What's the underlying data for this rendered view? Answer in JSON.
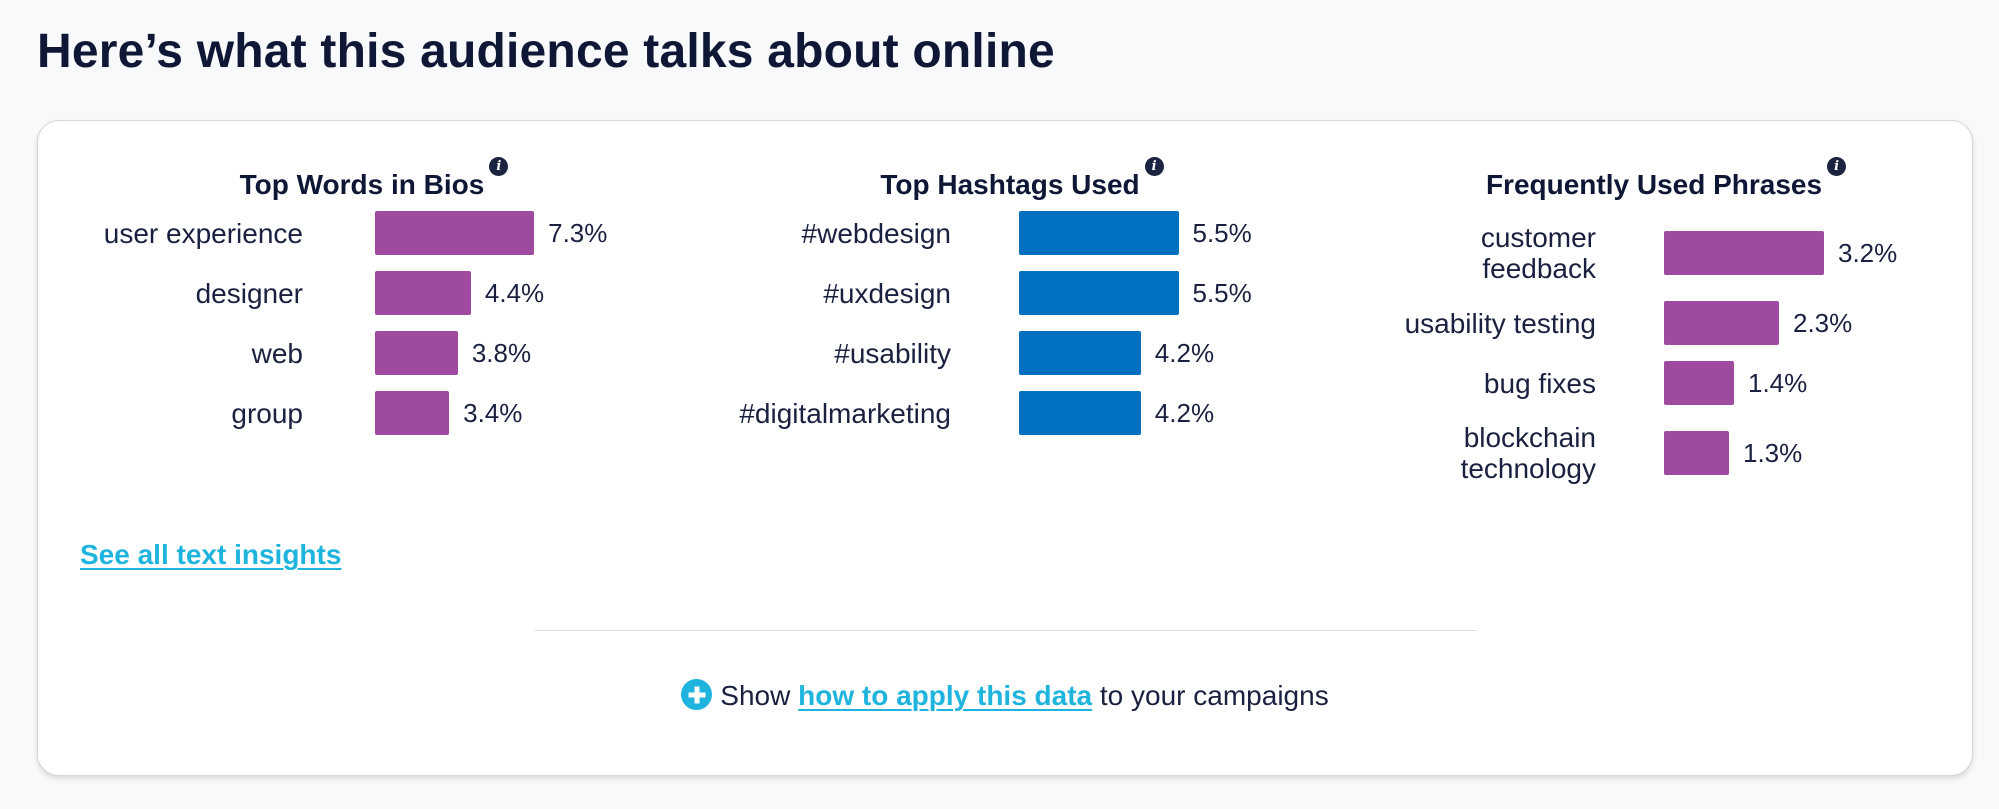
{
  "page": {
    "title": "Here’s what this audience talks about online"
  },
  "colors": {
    "purple_bar": "#9e4a9e",
    "blue_bar": "#0070c0",
    "link": "#1fb4de",
    "title": "#0e1736"
  },
  "panels": [
    {
      "key": "bios",
      "title": "Top Words in Bios",
      "info_icon": "info-icon",
      "bar_color": "#9e4a9e",
      "items": [
        {
          "label": "user experience",
          "value": 7.3,
          "display": "7.3%"
        },
        {
          "label": "designer",
          "value": 4.4,
          "display": "4.4%"
        },
        {
          "label": "web",
          "value": 3.8,
          "display": "3.8%"
        },
        {
          "label": "group",
          "value": 3.4,
          "display": "3.4%"
        }
      ]
    },
    {
      "key": "hashtags",
      "title": "Top Hashtags Used",
      "info_icon": "info-icon",
      "bar_color": "#0070c0",
      "items": [
        {
          "label": "#webdesign",
          "value": 5.5,
          "display": "5.5%"
        },
        {
          "label": "#uxdesign",
          "value": 5.5,
          "display": "5.5%"
        },
        {
          "label": "#usability",
          "value": 4.2,
          "display": "4.2%"
        },
        {
          "label": "#digitalmarketing",
          "value": 4.2,
          "display": "4.2%"
        }
      ]
    },
    {
      "key": "phrases",
      "title": "Frequently Used Phrases",
      "info_icon": "info-icon",
      "bar_color": "#9e4a9e",
      "items": [
        {
          "label": "customer\nfeedback",
          "value": 3.2,
          "display": "3.2%"
        },
        {
          "label": "usability testing",
          "value": 2.3,
          "display": "2.3%"
        },
        {
          "label": "bug fixes",
          "value": 1.4,
          "display": "1.4%"
        },
        {
          "label": "blockchain\ntechnology",
          "value": 1.3,
          "display": "1.3%"
        }
      ]
    }
  ],
  "links": {
    "see_all": "See all text insights"
  },
  "footer": {
    "icon": "plus-circle-icon",
    "prefix": "Show",
    "link_text": "how to apply this data",
    "suffix": "to your campaigns"
  }
}
